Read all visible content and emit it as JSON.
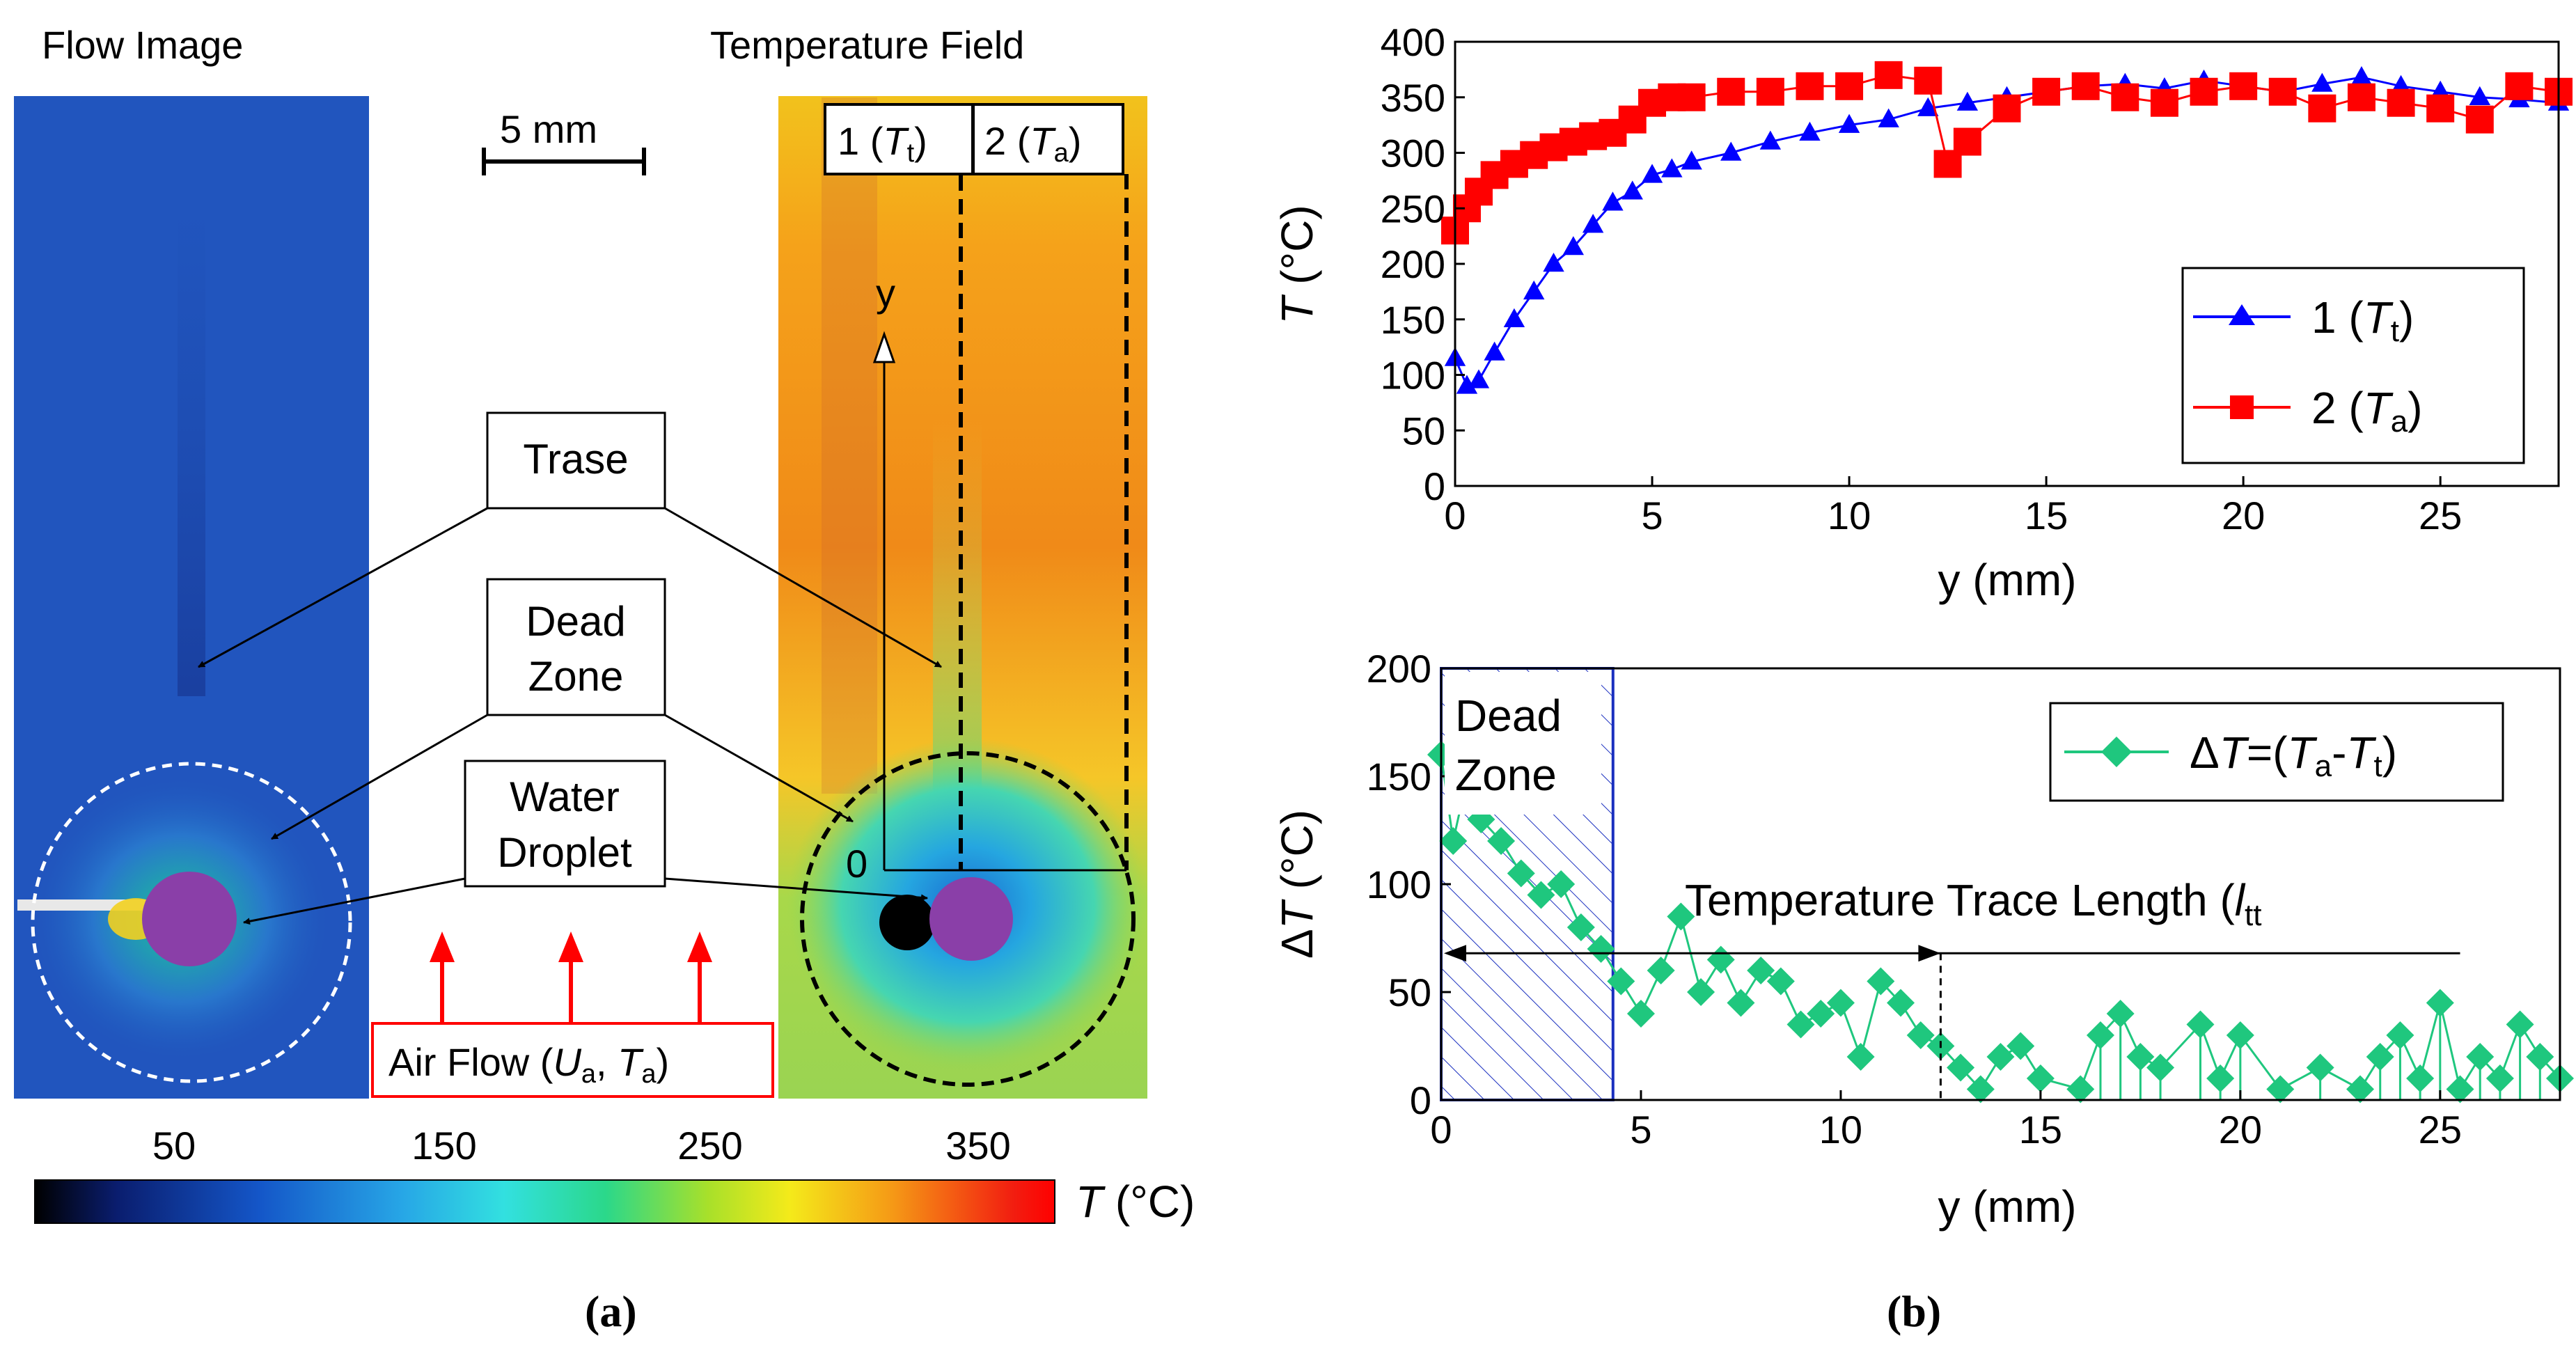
{
  "panel_a": {
    "flow_title": "Flow Image",
    "temp_title": "Temperature Field",
    "scale_bar": "5 mm",
    "line1_label": "1 (",
    "line1_var": "T",
    "line1_sub": "t",
    "line2_label": "2 (",
    "line2_var": "T",
    "line2_sub": "a",
    "close_paren": ")",
    "axis_y": "y",
    "axis_origin": "0",
    "callout_trase": "Trase",
    "callout_dead_1": "Dead",
    "callout_dead_2": "Zone",
    "callout_water_1": "Water",
    "callout_water_2": "Droplet",
    "airflow_prefix": "Air Flow (",
    "airflow_u": "U",
    "airflow_u_sub": "a",
    "airflow_sep": ", ",
    "airflow_t": "T",
    "airflow_t_sub": "a",
    "colorbar_ticks": [
      "50",
      "150",
      "250",
      "350"
    ],
    "colorbar_unit_var": "T",
    "colorbar_unit": " (°C)",
    "caption": "(a)"
  },
  "panel_b": {
    "caption": "(b)"
  },
  "colors": {
    "series1": "#0000ff",
    "series2": "#ff0000",
    "delta": "#1fc77e",
    "dead_zone": "#1a2fbf",
    "airflow": "#ff0000"
  },
  "chart_data": [
    {
      "type": "scatter",
      "title": "",
      "xlabel": "y (mm)",
      "ylabel_var": "T",
      "ylabel_unit": " (°C)",
      "xlim": [
        0,
        28
      ],
      "ylim": [
        0,
        400
      ],
      "xticks": [
        0,
        5,
        10,
        15,
        20,
        25
      ],
      "yticks": [
        0,
        50,
        100,
        150,
        200,
        250,
        300,
        350,
        400
      ],
      "legend_position": "right-middle",
      "series": [
        {
          "name": "1 (Tt)",
          "legend_prefix": "1 (",
          "legend_var": "T",
          "legend_sub": "t",
          "legend_suffix": ")",
          "marker": "triangle",
          "x": [
            0,
            0.3,
            0.6,
            1.0,
            1.5,
            2.0,
            2.5,
            3.0,
            3.5,
            4.0,
            4.5,
            5.0,
            5.5,
            6.0,
            7.0,
            8.0,
            9.0,
            10.0,
            11.0,
            12.0,
            13.0,
            14.0,
            15.0,
            16.0,
            17.0,
            18.0,
            19.0,
            20.0,
            21.0,
            22.0,
            23.0,
            24.0,
            25.0,
            26.0,
            27.0,
            28.0
          ],
          "y": [
            115,
            90,
            95,
            120,
            150,
            175,
            200,
            215,
            235,
            255,
            265,
            280,
            285,
            292,
            300,
            310,
            318,
            325,
            330,
            340,
            345,
            350,
            355,
            360,
            362,
            358,
            365,
            360,
            355,
            362,
            368,
            360,
            355,
            350,
            348,
            345
          ]
        },
        {
          "name": "2 (Ta)",
          "legend_prefix": "2 (",
          "legend_var": "T",
          "legend_sub": "a",
          "legend_suffix": ")",
          "marker": "square",
          "x": [
            0,
            0.3,
            0.6,
            1.0,
            1.5,
            2.0,
            2.5,
            3.0,
            3.5,
            4.0,
            4.5,
            5.0,
            5.5,
            6.0,
            7.0,
            8.0,
            9.0,
            10.0,
            11.0,
            12.0,
            12.5,
            13.0,
            14.0,
            15.0,
            16.0,
            17.0,
            18.0,
            19.0,
            20.0,
            21.0,
            22.0,
            23.0,
            24.0,
            25.0,
            26.0,
            27.0,
            28.0
          ],
          "y": [
            230,
            250,
            265,
            280,
            290,
            298,
            305,
            310,
            315,
            318,
            330,
            345,
            350,
            350,
            355,
            355,
            360,
            360,
            370,
            365,
            290,
            310,
            340,
            355,
            360,
            350,
            345,
            355,
            360,
            355,
            340,
            350,
            345,
            340,
            330,
            360,
            355
          ]
        }
      ]
    },
    {
      "type": "scatter",
      "title": "",
      "xlabel": "y (mm)",
      "ylabel_prefix": "Δ",
      "ylabel_var": "T",
      "ylabel_unit": " (°C)",
      "xlim": [
        0,
        28
      ],
      "ylim": [
        0,
        200
      ],
      "xticks": [
        0,
        5,
        10,
        15,
        20,
        25
      ],
      "yticks": [
        0,
        50,
        100,
        150,
        200
      ],
      "dead_zone": {
        "x0": 0,
        "x1": 4.3,
        "label_1": "Dead",
        "label_2": "Zone"
      },
      "trace_length": {
        "y_level": 68,
        "x_start": 0,
        "x_end": 25.5,
        "x_arrow": 12.5,
        "label": "Temperature Trace Length (",
        "label_var": "l",
        "label_sub": "tt",
        "label_suffix": ""
      },
      "legend_position": "top-right",
      "series": [
        {
          "name": "ΔT=(Ta-Tt)",
          "legend_prefix": "Δ",
          "legend_var": "T",
          "legend_eq": "=(",
          "legend_var2": "T",
          "legend_sub2": "a",
          "legend_minus": "-",
          "legend_var3": "T",
          "legend_sub3": "t",
          "legend_suffix": ")",
          "marker": "diamond",
          "x": [
            0,
            0.3,
            0.6,
            1.0,
            1.5,
            2.0,
            2.5,
            3.0,
            3.5,
            4.0,
            4.5,
            5.0,
            5.5,
            6.0,
            6.5,
            7.0,
            7.5,
            8.0,
            8.5,
            9.0,
            9.5,
            10.0,
            10.5,
            11.0,
            11.5,
            12.0,
            12.5,
            13.0,
            13.5,
            14.0,
            14.5,
            15.0,
            16.0,
            16.5,
            17.0,
            17.5,
            18.0,
            19.0,
            19.5,
            20.0,
            21.0,
            22.0,
            23.0,
            23.5,
            24.0,
            24.5,
            25.0,
            25.5,
            26.0,
            26.5,
            27.0,
            27.5,
            28.0
          ],
          "y": [
            160,
            120,
            145,
            130,
            120,
            105,
            95,
            100,
            80,
            70,
            55,
            40,
            60,
            85,
            50,
            65,
            45,
            60,
            55,
            35,
            40,
            45,
            20,
            55,
            45,
            30,
            25,
            15,
            5,
            20,
            25,
            10,
            5,
            30,
            40,
            20,
            15,
            35,
            10,
            30,
            5,
            15,
            5,
            20,
            30,
            10,
            45,
            5,
            20,
            10,
            35,
            20,
            10
          ]
        }
      ]
    }
  ]
}
